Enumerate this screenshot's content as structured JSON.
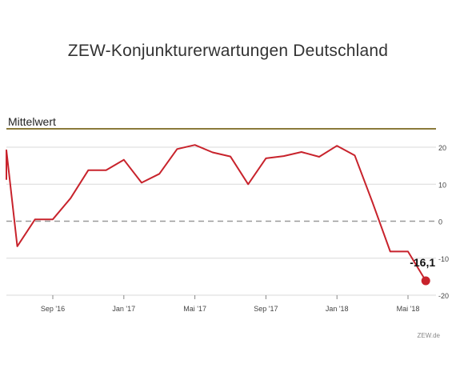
{
  "header": {
    "title": "ZEW-Konjunkturerwartungen Deutschland"
  },
  "reference": {
    "label": "Mittelwert",
    "color": "#8a7a3a"
  },
  "footer": {
    "source": "ZEW.de"
  },
  "colors": {
    "line": "#c8232c",
    "grid": "#d9d9d9",
    "zero": "#999999",
    "tick_text": "#444444"
  },
  "chart_data": {
    "type": "line",
    "title": "ZEW-Konjunkturerwartungen Deutschland",
    "xlabel": "",
    "ylabel": "",
    "ylim": [
      -20,
      25
    ],
    "yticks": [
      20,
      10,
      0,
      -10,
      -20
    ],
    "x_tick_labels": [
      "Sep '16",
      "Jan '17",
      "Mai '17",
      "Sep '17",
      "Jan '18",
      "Mai '18"
    ],
    "x_tick_dates": [
      "2016-09",
      "2017-01",
      "2017-05",
      "2017-09",
      "2018-01",
      "2018-05"
    ],
    "grid": "horizontal",
    "series": [
      {
        "x": [
          "2016-05",
          "2016-06",
          "2016-07",
          "2016-08",
          "2016-09",
          "2016-10",
          "2016-11",
          "2016-12",
          "2017-01",
          "2017-02",
          "2017-03",
          "2017-04",
          "2017-05",
          "2017-06",
          "2017-07",
          "2017-08",
          "2017-09",
          "2017-10",
          "2017-11",
          "2017-12",
          "2018-01",
          "2018-02",
          "2018-03",
          "2018-04",
          "2018-05",
          "2018-06"
        ],
        "values": [
          11.2,
          19.2,
          -6.8,
          0.5,
          0.5,
          6.2,
          13.8,
          13.8,
          16.6,
          10.4,
          12.8,
          19.5,
          20.6,
          18.6,
          17.5,
          10.0,
          17.0,
          17.6,
          18.7,
          17.4,
          20.4,
          17.8,
          5.1,
          -8.2,
          -8.2,
          -16.1
        ],
        "last_label": "-16,1"
      }
    ]
  }
}
